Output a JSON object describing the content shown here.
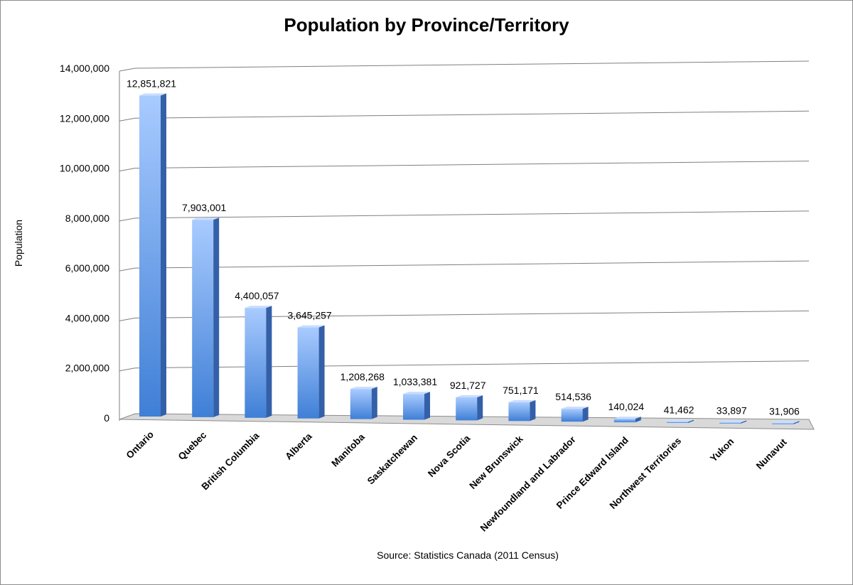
{
  "colors": {
    "bar_light": "#a9cbff",
    "bar_dark": "#3f7fd6",
    "bar_side": "#3360a8",
    "bar_top": "#c9ddff",
    "grid": "#7f7f7f",
    "floor": "#d9d9d9"
  },
  "chart_data": {
    "type": "bar",
    "title": "Population by Province/Territory",
    "xlabel": "",
    "ylabel": "Population",
    "source": "Source: Statistics Canada (2011 Census)",
    "ylim": [
      0,
      14000000
    ],
    "yticks": [
      "0",
      "2,000,000",
      "4,000,000",
      "6,000,000",
      "8,000,000",
      "10,000,000",
      "12,000,000",
      "14,000,000"
    ],
    "grid": true,
    "style": "3d-column",
    "categories": [
      "Ontario",
      "Quebec",
      "British Columbia",
      "Alberta",
      "Manitoba",
      "Saskatchewan",
      "Nova Scotia",
      "New Brunswick",
      "Newfoundland and Labrador",
      "Prince Edward Island",
      "Northwest Territories",
      "Yukon",
      "Nunavut"
    ],
    "values": [
      12851821,
      7903001,
      4400057,
      3645257,
      1208268,
      1033381,
      921727,
      751171,
      514536,
      140024,
      41462,
      33897,
      31906
    ],
    "value_labels": [
      "12,851,821",
      "7,903,001",
      "4,400,057",
      "3,645,257",
      "1,208,268",
      "1,033,381",
      "921,727",
      "751,171",
      "514,536",
      "140,024",
      "41,462",
      "33,897",
      "31,906"
    ]
  }
}
